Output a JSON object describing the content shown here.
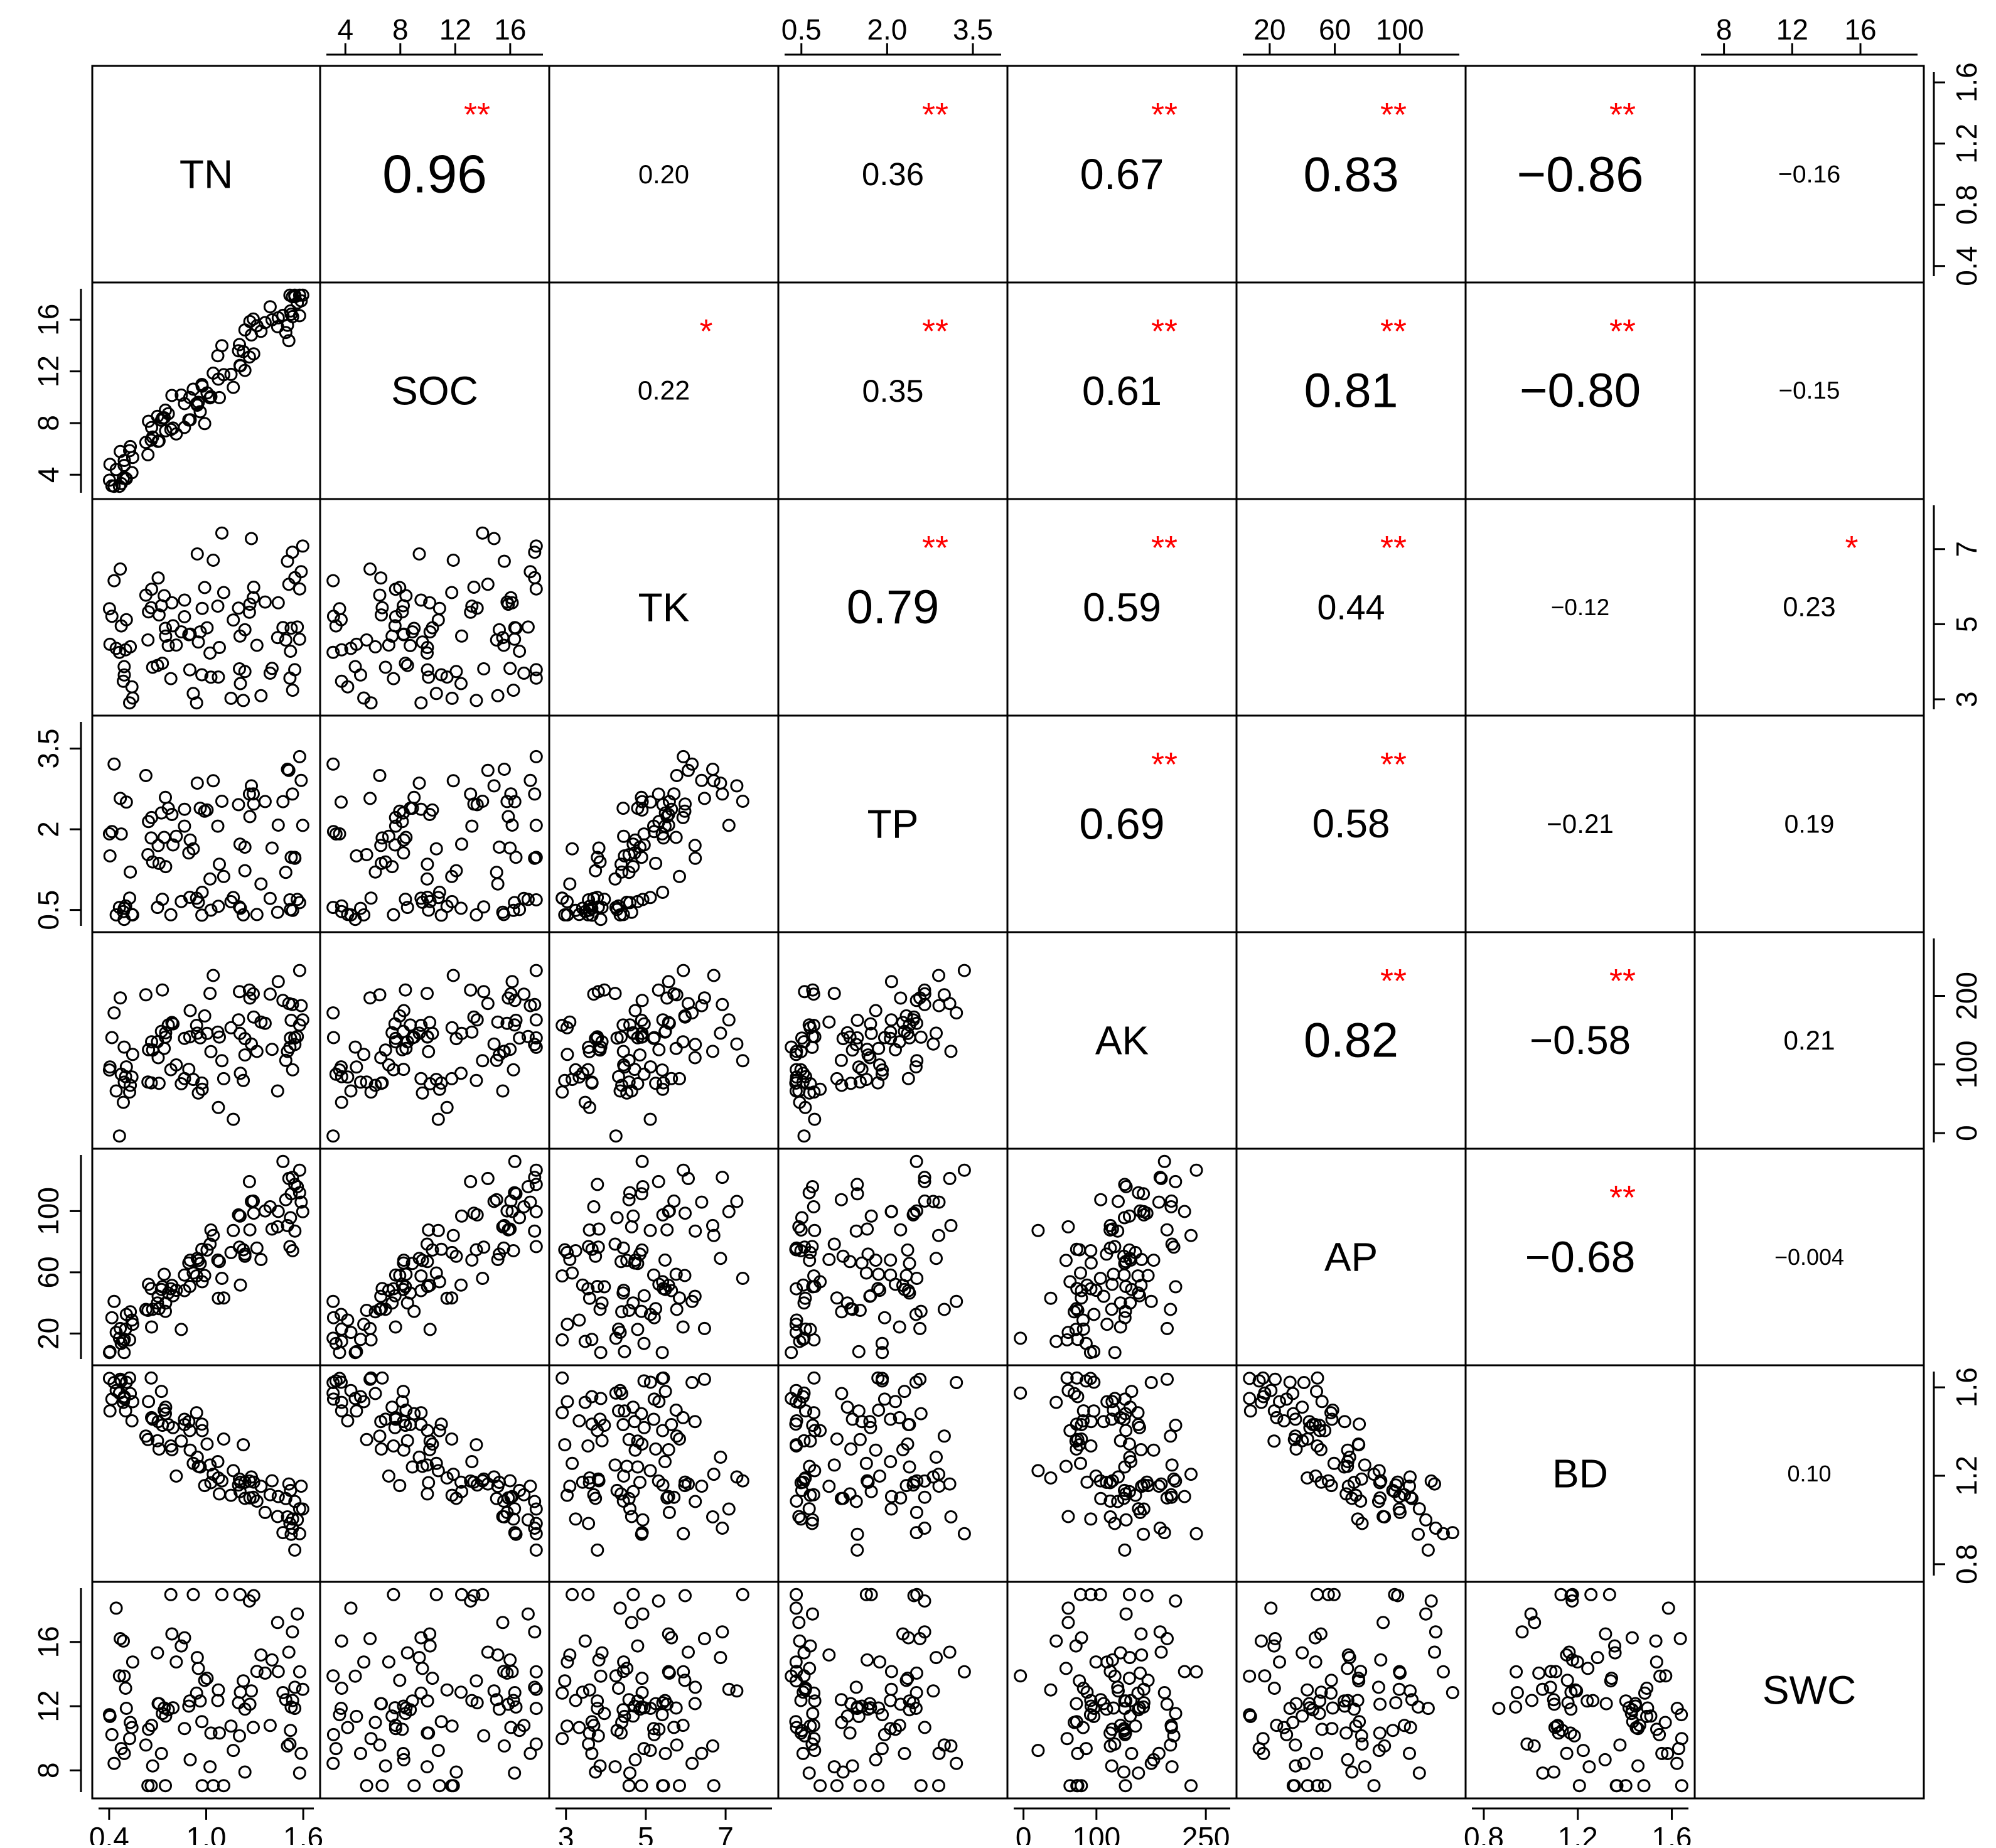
{
  "chart_data": {
    "type": "scatter",
    "title": "",
    "variables": [
      "TN",
      "SOC",
      "TK",
      "TP",
      "AK",
      "AP",
      "BD",
      "SWC"
    ],
    "axis_ranges": {
      "TN": [
        0.35,
        1.65
      ],
      "SOC": [
        2.8,
        18.2
      ],
      "TK": [
        2.8,
        8.1
      ],
      "TP": [
        0.25,
        3.95
      ],
      "AK": [
        -10,
        280
      ],
      "AP": [
        5,
        135
      ],
      "BD": [
        0.76,
        1.66
      ],
      "SWC": [
        6.8,
        19.2
      ]
    },
    "tick_labels": {
      "TN": [
        "0.4",
        "1.0",
        "1.6"
      ],
      "SOC": [
        "4",
        "8",
        "12",
        "16"
      ],
      "TK": [
        "3",
        "5",
        "7"
      ],
      "TP_top": [
        "0.5",
        "2.0",
        "3.5"
      ],
      "TP_left": [
        "0.5",
        "2",
        "3.5"
      ],
      "AK": [
        "0",
        "100",
        "250"
      ],
      "AK_right": [
        "0",
        "100",
        "200"
      ],
      "AP": [
        "20",
        "60",
        "100"
      ],
      "BD": [
        "0.8",
        "1.2",
        "1.6"
      ],
      "BD_right": [
        "0.8",
        "1.2",
        "1.6"
      ],
      "SWC": [
        "8",
        "12",
        "16"
      ],
      "TN_right": [
        "0.4",
        "0.8",
        "1.2",
        "1.6"
      ],
      "TK_right": [
        "3",
        "5",
        "7"
      ]
    },
    "correlations": [
      {
        "pair": [
          "TN",
          "SOC"
        ],
        "r": "0.96",
        "sig": "**"
      },
      {
        "pair": [
          "TN",
          "TK"
        ],
        "r": "0.20",
        "sig": ""
      },
      {
        "pair": [
          "TN",
          "TP"
        ],
        "r": "0.36",
        "sig": "**"
      },
      {
        "pair": [
          "TN",
          "AK"
        ],
        "r": "0.67",
        "sig": "**"
      },
      {
        "pair": [
          "TN",
          "AP"
        ],
        "r": "0.83",
        "sig": "**"
      },
      {
        "pair": [
          "TN",
          "BD"
        ],
        "r": "−0.86",
        "sig": "**"
      },
      {
        "pair": [
          "TN",
          "SWC"
        ],
        "r": "−0.16",
        "sig": ""
      },
      {
        "pair": [
          "SOC",
          "TK"
        ],
        "r": "0.22",
        "sig": "*"
      },
      {
        "pair": [
          "SOC",
          "TP"
        ],
        "r": "0.35",
        "sig": "**"
      },
      {
        "pair": [
          "SOC",
          "AK"
        ],
        "r": "0.61",
        "sig": "**"
      },
      {
        "pair": [
          "SOC",
          "AP"
        ],
        "r": "0.81",
        "sig": "**"
      },
      {
        "pair": [
          "SOC",
          "BD"
        ],
        "r": "−0.80",
        "sig": "**"
      },
      {
        "pair": [
          "SOC",
          "SWC"
        ],
        "r": "−0.15",
        "sig": ""
      },
      {
        "pair": [
          "TK",
          "TP"
        ],
        "r": "0.79",
        "sig": "**"
      },
      {
        "pair": [
          "TK",
          "AK"
        ],
        "r": "0.59",
        "sig": "**"
      },
      {
        "pair": [
          "TK",
          "AP"
        ],
        "r": "0.44",
        "sig": "**"
      },
      {
        "pair": [
          "TK",
          "BD"
        ],
        "r": "−0.12",
        "sig": ""
      },
      {
        "pair": [
          "TK",
          "SWC"
        ],
        "r": "0.23",
        "sig": "*"
      },
      {
        "pair": [
          "TP",
          "AK"
        ],
        "r": "0.69",
        "sig": "**"
      },
      {
        "pair": [
          "TP",
          "AP"
        ],
        "r": "0.58",
        "sig": "**"
      },
      {
        "pair": [
          "TP",
          "BD"
        ],
        "r": "−0.21",
        "sig": ""
      },
      {
        "pair": [
          "TP",
          "SWC"
        ],
        "r": "0.19",
        "sig": ""
      },
      {
        "pair": [
          "AK",
          "AP"
        ],
        "r": "0.82",
        "sig": "**"
      },
      {
        "pair": [
          "AK",
          "BD"
        ],
        "r": "−0.58",
        "sig": "**"
      },
      {
        "pair": [
          "AK",
          "SWC"
        ],
        "r": "0.21",
        "sig": ""
      },
      {
        "pair": [
          "AP",
          "BD"
        ],
        "r": "−0.68",
        "sig": "**"
      },
      {
        "pair": [
          "AP",
          "SWC"
        ],
        "r": "−0.004",
        "sig": ""
      },
      {
        "pair": [
          "BD",
          "SWC"
        ],
        "r": "0.10",
        "sig": ""
      }
    ],
    "sample_count": 96,
    "point_style": "open circle",
    "significance_color": "#ff0000",
    "text_color": "#000000",
    "grid": false,
    "legend": "none"
  }
}
